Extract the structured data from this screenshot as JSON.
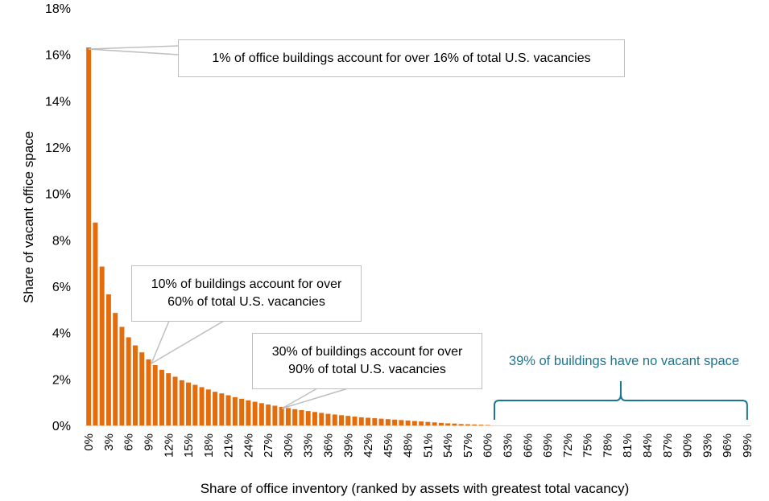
{
  "chart_data": {
    "type": "bar",
    "title": "",
    "ylabel": "Share of vacant office space",
    "xlabel": "Share of office inventory (ranked by assets with greatest total vacancy)",
    "ylim": [
      0,
      18
    ],
    "yticks": [
      "0%",
      "2%",
      "4%",
      "6%",
      "8%",
      "10%",
      "12%",
      "14%",
      "16%",
      "18%"
    ],
    "xticks": [
      "0%",
      "3%",
      "6%",
      "9%",
      "12%",
      "15%",
      "18%",
      "21%",
      "24%",
      "27%",
      "30%",
      "33%",
      "36%",
      "39%",
      "42%",
      "45%",
      "48%",
      "51%",
      "54%",
      "57%",
      "60%",
      "63%",
      "66%",
      "69%",
      "72%",
      "75%",
      "78%",
      "81%",
      "84%",
      "87%",
      "90%",
      "93%",
      "96%",
      "99%"
    ],
    "bar_color": "#e46c0a",
    "values": [
      16.3,
      8.75,
      6.85,
      5.65,
      4.85,
      4.25,
      3.8,
      3.45,
      3.15,
      2.85,
      2.6,
      2.4,
      2.25,
      2.1,
      1.95,
      1.85,
      1.75,
      1.65,
      1.55,
      1.45,
      1.38,
      1.3,
      1.22,
      1.15,
      1.08,
      1.02,
      0.96,
      0.9,
      0.85,
      0.8,
      0.75,
      0.7,
      0.66,
      0.62,
      0.58,
      0.54,
      0.5,
      0.47,
      0.44,
      0.41,
      0.38,
      0.35,
      0.33,
      0.31,
      0.29,
      0.27,
      0.25,
      0.23,
      0.21,
      0.19,
      0.17,
      0.15,
      0.13,
      0.11,
      0.09,
      0.08,
      0.06,
      0.05,
      0.04,
      0.03,
      0.02,
      0,
      0,
      0,
      0,
      0,
      0,
      0,
      0,
      0,
      0,
      0,
      0,
      0,
      0,
      0,
      0,
      0,
      0,
      0,
      0,
      0,
      0,
      0,
      0,
      0,
      0,
      0,
      0,
      0,
      0,
      0,
      0,
      0,
      0,
      0,
      0,
      0,
      0,
      0
    ],
    "annotations": [
      {
        "text": "1% of office buildings account for over 16% of total U.S. vacancies",
        "x_index": 0
      },
      {
        "text": "10% of buildings account for over 60% of total U.S. vacancies",
        "x_index": 9
      },
      {
        "text": "30% of buildings account for over 90% of total U.S. vacancies",
        "x_index": 29
      }
    ],
    "bracket": {
      "text": "39% of buildings have no vacant space",
      "color": "#1b7692",
      "from_index": 61,
      "to_index": 99
    }
  }
}
